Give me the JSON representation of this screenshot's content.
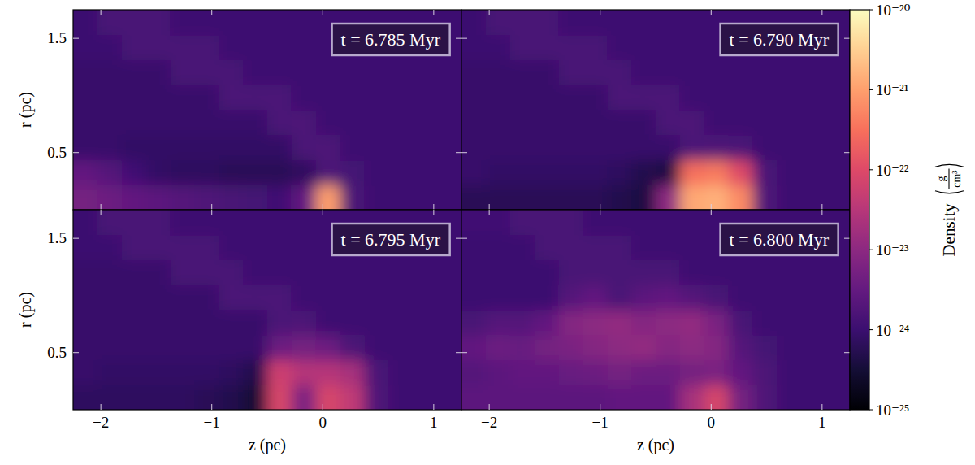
{
  "chart_data": {
    "type": "heatmap",
    "x_label": "z (pc)",
    "y_label": "r (pc)",
    "xlim": [
      -2.25,
      1.25
    ],
    "ylim": [
      0,
      1.75
    ],
    "xticks": [
      {
        "value": -2,
        "label": "−2"
      },
      {
        "value": -1,
        "label": "−1"
      },
      0,
      1
    ],
    "yticks": [
      0.5,
      1.5
    ],
    "z": [
      -2.141,
      -1.922,
      -1.703,
      -1.484,
      -1.266,
      -1.047,
      -0.828,
      -0.609,
      -0.391,
      -0.172,
      0.047,
      0.266,
      0.484,
      0.703,
      0.922,
      1.141
    ],
    "r": [
      0.109,
      0.328,
      0.547,
      0.766,
      0.984,
      1.203,
      1.422,
      1.641
    ],
    "colorbar": {
      "label": "Density",
      "unit_numerator": "g",
      "unit_denominator": "cm³",
      "log": true,
      "range": [
        1e-25,
        1e-20
      ],
      "ticks": [
        {
          "value": 1e-25,
          "label": "10⁻²⁵"
        },
        {
          "value": 1e-24,
          "label": "10⁻²⁴"
        },
        {
          "value": 1e-23,
          "label": "10⁻²³"
        },
        {
          "value": 1e-22,
          "label": "10⁻²²"
        },
        {
          "value": 1e-21,
          "label": "10⁻²¹"
        },
        {
          "value": 1e-20,
          "label": "10⁻²⁰"
        }
      ]
    },
    "panels": [
      {
        "title": "t = 6.785 Myr",
        "values": [
          [
            5e-24,
            4e-24,
            3e-24,
            2.5e-24,
            2e-24,
            1.8e-24,
            1.5e-24,
            1.3e-24,
            1.2e-24,
            3e-24,
            1e-21,
            1.6e-24,
            1.1e-24,
            1.1e-24,
            1.1e-24,
            1.1e-24
          ],
          [
            3e-24,
            2e-24,
            1.2e-24,
            8e-25,
            7e-25,
            7e-25,
            6e-25,
            6e-25,
            6e-25,
            7e-25,
            1.7e-24,
            1.3e-24,
            1.1e-24,
            1.1e-24,
            1.1e-24,
            1.1e-24
          ],
          [
            9e-25,
            9e-25,
            8e-25,
            8e-25,
            8e-25,
            8e-25,
            8e-25,
            8e-25,
            8e-25,
            1.6e-24,
            1.7e-24,
            1.1e-24,
            1.1e-24,
            1.1e-24,
            1.1e-24,
            1.1e-24
          ],
          [
            9e-25,
            9e-25,
            9e-25,
            9e-25,
            9e-25,
            9e-25,
            9e-25,
            9e-25,
            1.6e-24,
            1.7e-24,
            1.1e-24,
            1.1e-24,
            1.1e-24,
            1.1e-24,
            1.1e-24,
            1.1e-24
          ],
          [
            9e-25,
            9e-25,
            9e-25,
            9e-25,
            9e-25,
            9e-25,
            1.6e-24,
            1.6e-24,
            1.6e-24,
            1.1e-24,
            1.1e-24,
            1.1e-24,
            1.1e-24,
            1.1e-24,
            1.1e-24,
            1.1e-24
          ],
          [
            9e-25,
            9e-25,
            9e-25,
            9e-25,
            1.5e-24,
            1.5e-24,
            1.5e-24,
            1.1e-24,
            1.1e-24,
            1.1e-24,
            1.1e-24,
            1.1e-24,
            1.1e-24,
            1.1e-24,
            1.1e-24,
            1.1e-24
          ],
          [
            1e-24,
            1e-24,
            1.5e-24,
            1.5e-24,
            1.5e-24,
            1.5e-24,
            1.1e-24,
            1.1e-24,
            1.1e-24,
            1.1e-24,
            1.1e-24,
            1.1e-24,
            1.1e-24,
            1.1e-24,
            1.1e-24,
            1.1e-24
          ],
          [
            1e-24,
            1.5e-24,
            1.5e-24,
            1.5e-24,
            1.1e-24,
            1.1e-24,
            1.1e-24,
            1.1e-24,
            1.1e-24,
            1.1e-24,
            1.1e-24,
            1.1e-24,
            1.1e-24,
            1.1e-24,
            1.1e-24,
            1.1e-24
          ]
        ]
      },
      {
        "title": "t = 6.790 Myr",
        "values": [
          [
            6e-25,
            6e-25,
            6e-25,
            6e-25,
            6e-25,
            6e-25,
            5e-25,
            4e-25,
            1e-23,
            1.2e-21,
            1.5e-21,
            6e-22,
            1.8e-24,
            1.1e-24,
            1.1e-24,
            1.1e-24
          ],
          [
            9e-25,
            8e-25,
            8e-25,
            8e-25,
            8e-25,
            8e-25,
            7e-25,
            5e-25,
            4e-25,
            3e-22,
            4e-22,
            1e-22,
            1.6e-24,
            1.1e-24,
            1.1e-24,
            1.1e-24
          ],
          [
            9e-25,
            9e-25,
            9e-25,
            9e-25,
            9e-25,
            9e-25,
            9e-25,
            9e-25,
            9e-25,
            1.6e-24,
            1.7e-24,
            1.6e-24,
            1.1e-24,
            1.1e-24,
            1.1e-24,
            1.1e-24
          ],
          [
            9e-25,
            9e-25,
            9e-25,
            9e-25,
            9e-25,
            9e-25,
            9e-25,
            9e-25,
            1.6e-24,
            1.7e-24,
            1.1e-24,
            1.1e-24,
            1.1e-24,
            1.1e-24,
            1.1e-24,
            1.1e-24
          ],
          [
            9e-25,
            9e-25,
            9e-25,
            9e-25,
            9e-25,
            9e-25,
            1.6e-24,
            1.6e-24,
            1.6e-24,
            1.1e-24,
            1.1e-24,
            1.1e-24,
            1.1e-24,
            1.1e-24,
            1.1e-24,
            1.1e-24
          ],
          [
            9e-25,
            9e-25,
            9e-25,
            9e-25,
            1.5e-24,
            1.5e-24,
            1.5e-24,
            1.1e-24,
            1.1e-24,
            1.1e-24,
            1.1e-24,
            1.1e-24,
            1.1e-24,
            1.1e-24,
            1.1e-24,
            1.1e-24
          ],
          [
            1e-24,
            1e-24,
            1.5e-24,
            1.5e-24,
            1.5e-24,
            1.5e-24,
            1.1e-24,
            1.1e-24,
            1.1e-24,
            1.1e-24,
            1.1e-24,
            1.1e-24,
            1.1e-24,
            1.1e-24,
            1.1e-24,
            1.1e-24
          ],
          [
            1e-24,
            1.5e-24,
            1.5e-24,
            1.5e-24,
            1.1e-24,
            1.1e-24,
            1.1e-24,
            1.1e-24,
            1.1e-24,
            1.1e-24,
            1.1e-24,
            1.1e-24,
            1.1e-24,
            1.1e-24,
            1.1e-24,
            1.1e-24
          ]
        ]
      },
      {
        "title": "t = 6.795 Myr",
        "values": [
          [
            7e-25,
            7e-25,
            7e-25,
            7e-25,
            7e-25,
            6e-25,
            5e-25,
            3e-25,
            8e-23,
            6e-24,
            8e-23,
            4e-23,
            1.8e-24,
            1.1e-24,
            1.1e-24,
            1.1e-24
          ],
          [
            9e-25,
            8e-25,
            8e-25,
            8e-25,
            8e-25,
            8e-25,
            7e-25,
            5e-25,
            6e-23,
            3e-23,
            3e-23,
            2e-23,
            1.6e-24,
            1.1e-24,
            1.1e-24,
            1.1e-24
          ],
          [
            9e-25,
            9e-25,
            9e-25,
            9e-25,
            9e-25,
            9e-25,
            9e-25,
            9e-25,
            4e-24,
            5e-24,
            4e-24,
            1.7e-24,
            1.1e-24,
            1.1e-24,
            1.1e-24,
            1.1e-24
          ],
          [
            9e-25,
            9e-25,
            9e-25,
            9e-25,
            9e-25,
            9e-25,
            9e-25,
            9e-25,
            1.6e-24,
            1.7e-24,
            1.1e-24,
            1.1e-24,
            1.1e-24,
            1.1e-24,
            1.1e-24,
            1.1e-24
          ],
          [
            9e-25,
            9e-25,
            9e-25,
            9e-25,
            9e-25,
            9e-25,
            1.6e-24,
            1.6e-24,
            1.6e-24,
            1.1e-24,
            1.1e-24,
            1.1e-24,
            1.1e-24,
            1.1e-24,
            1.1e-24,
            1.1e-24
          ],
          [
            9e-25,
            9e-25,
            9e-25,
            9e-25,
            1.5e-24,
            1.5e-24,
            1.5e-24,
            1.1e-24,
            1.1e-24,
            1.1e-24,
            1.1e-24,
            1.1e-24,
            1.1e-24,
            1.1e-24,
            1.1e-24,
            1.1e-24
          ],
          [
            1e-24,
            1e-24,
            1.5e-24,
            1.5e-24,
            1.5e-24,
            1.5e-24,
            1.1e-24,
            1.1e-24,
            1.1e-24,
            1.1e-24,
            1.1e-24,
            1.1e-24,
            1.1e-24,
            1.1e-24,
            1.1e-24,
            1.1e-24
          ],
          [
            1e-24,
            1.5e-24,
            1.5e-24,
            1.5e-24,
            1.1e-24,
            1.1e-24,
            1.1e-24,
            1.1e-24,
            1.1e-24,
            1.1e-24,
            1.1e-24,
            1.1e-24,
            1.1e-24,
            1.1e-24,
            1.1e-24,
            1.1e-24
          ]
        ]
      },
      {
        "title": "t = 6.800 Myr",
        "values": [
          [
            2.5e-24,
            2.5e-24,
            2.5e-24,
            2.5e-24,
            2.5e-24,
            2.5e-24,
            3e-24,
            3e-24,
            3e-24,
            2e-23,
            8e-23,
            5e-24,
            1.8e-24,
            1.1e-24,
            1.1e-24,
            1.1e-24
          ],
          [
            2e-24,
            2.5e-24,
            3e-24,
            3e-24,
            3.5e-24,
            4e-24,
            5e-24,
            4e-24,
            4e-24,
            5e-24,
            6e-24,
            3e-24,
            1.7e-24,
            1.1e-24,
            1.1e-24,
            1.1e-24
          ],
          [
            3e-24,
            4e-24,
            3.5e-24,
            5e-24,
            6e-24,
            8e-24,
            1e-23,
            1.2e-23,
            8e-24,
            1e-23,
            8e-24,
            2e-24,
            1.3e-24,
            1.1e-24,
            1.1e-24,
            1.1e-24
          ],
          [
            1.5e-24,
            2e-24,
            2e-24,
            3e-24,
            8e-24,
            1e-23,
            1.2e-23,
            8e-24,
            1e-23,
            1.2e-23,
            6e-24,
            1.5e-24,
            1.1e-24,
            1.1e-24,
            1.1e-24,
            1.1e-24
          ],
          [
            1e-24,
            1e-24,
            1e-24,
            1e-24,
            2e-24,
            3e-24,
            1.5e-24,
            2.5e-24,
            3e-24,
            2e-24,
            1.5e-24,
            1.1e-24,
            1.1e-24,
            1.1e-24,
            1.1e-24,
            1.1e-24
          ],
          [
            1e-24,
            1e-24,
            1e-24,
            1e-24,
            1.5e-24,
            1.5e-24,
            1.5e-24,
            1.5e-24,
            1.5e-24,
            1.1e-24,
            1.1e-24,
            1.1e-24,
            1.1e-24,
            1.1e-24,
            1.1e-24,
            1.1e-24
          ],
          [
            1e-24,
            1e-24,
            1e-24,
            1.5e-24,
            1.5e-24,
            1.5e-24,
            1.5e-24,
            1.1e-24,
            1.1e-24,
            1.1e-24,
            1.1e-24,
            1.1e-24,
            1.1e-24,
            1.1e-24,
            1.1e-24,
            1.1e-24
          ],
          [
            1.2e-24,
            1.2e-24,
            1.5e-24,
            1.5e-24,
            1.5e-24,
            1.1e-24,
            1.1e-24,
            1.1e-24,
            1.1e-24,
            1.1e-24,
            1.1e-24,
            1.1e-24,
            1.1e-24,
            1.1e-24,
            1.1e-24,
            1.1e-24
          ]
        ]
      }
    ]
  }
}
